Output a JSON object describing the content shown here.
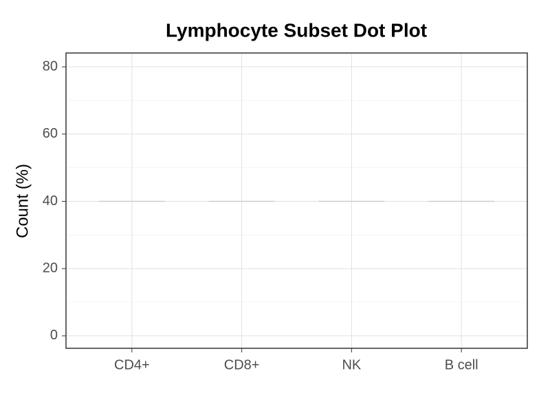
{
  "chart_data": {
    "type": "dot",
    "title": "Lymphocyte Subset Dot Plot",
    "y_label": "Count (%)",
    "categories": [
      "CD4+",
      "CD8+",
      "NK",
      "B cell"
    ],
    "values": [
      40,
      40,
      40,
      40
    ],
    "color": "#cccccc",
    "ylim": [
      -3.7,
      84.1
    ],
    "yticks": [
      0,
      20,
      40,
      60,
      80
    ],
    "minor_yticks": [
      10,
      30,
      50,
      70
    ],
    "grid": true
  }
}
